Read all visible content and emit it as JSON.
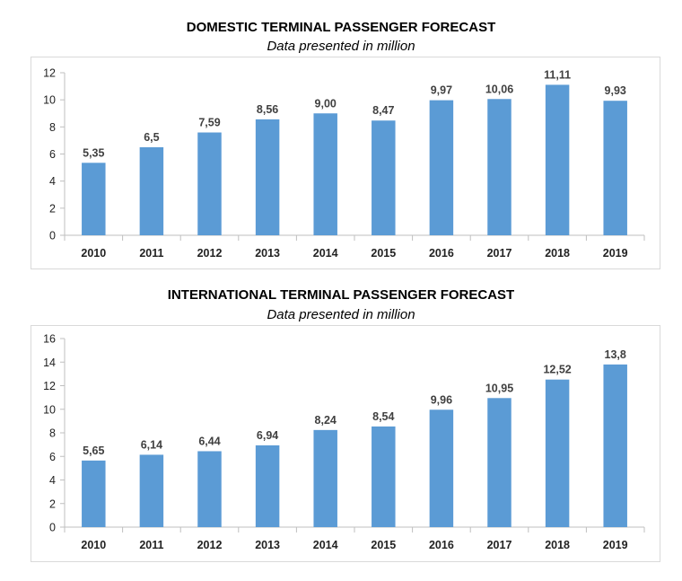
{
  "chart_data": [
    {
      "type": "bar",
      "title": "DOMESTIC TERMINAL PASSENGER FORECAST",
      "subtitle": "Data presented in million",
      "categories": [
        "2010",
        "2011",
        "2012",
        "2013",
        "2014",
        "2015",
        "2016",
        "2017",
        "2018",
        "2019"
      ],
      "values": [
        5.35,
        6.5,
        7.59,
        8.56,
        9.0,
        8.47,
        9.97,
        10.06,
        11.11,
        9.93
      ],
      "data_labels": [
        "5,35",
        "6,5",
        "7,59",
        "8,56",
        "9,00",
        "8,47",
        "9,97",
        "10,06",
        "11,11",
        "9,93"
      ],
      "yticks": [
        "0",
        "2",
        "4",
        "6",
        "8",
        "10",
        "12"
      ],
      "ylim": [
        0,
        12
      ],
      "xlabel": "",
      "ylabel": "",
      "grid": false,
      "bar_color": "#5b9bd5"
    },
    {
      "type": "bar",
      "title": "INTERNATIONAL TERMINAL PASSENGER FORECAST",
      "subtitle": "Data presented in million",
      "categories": [
        "2010",
        "2011",
        "2012",
        "2013",
        "2014",
        "2015",
        "2016",
        "2017",
        "2018",
        "2019"
      ],
      "values": [
        5.65,
        6.14,
        6.44,
        6.94,
        8.24,
        8.54,
        9.96,
        10.95,
        12.52,
        13.8
      ],
      "data_labels": [
        "5,65",
        "6,14",
        "6,44",
        "6,94",
        "8,24",
        "8,54",
        "9,96",
        "10,95",
        "12,52",
        "13,8"
      ],
      "yticks": [
        "0",
        "2",
        "4",
        "6",
        "8",
        "10",
        "12",
        "14",
        "16"
      ],
      "ylim": [
        0,
        16
      ],
      "xlabel": "",
      "ylabel": "",
      "grid": false,
      "bar_color": "#5b9bd5"
    }
  ]
}
